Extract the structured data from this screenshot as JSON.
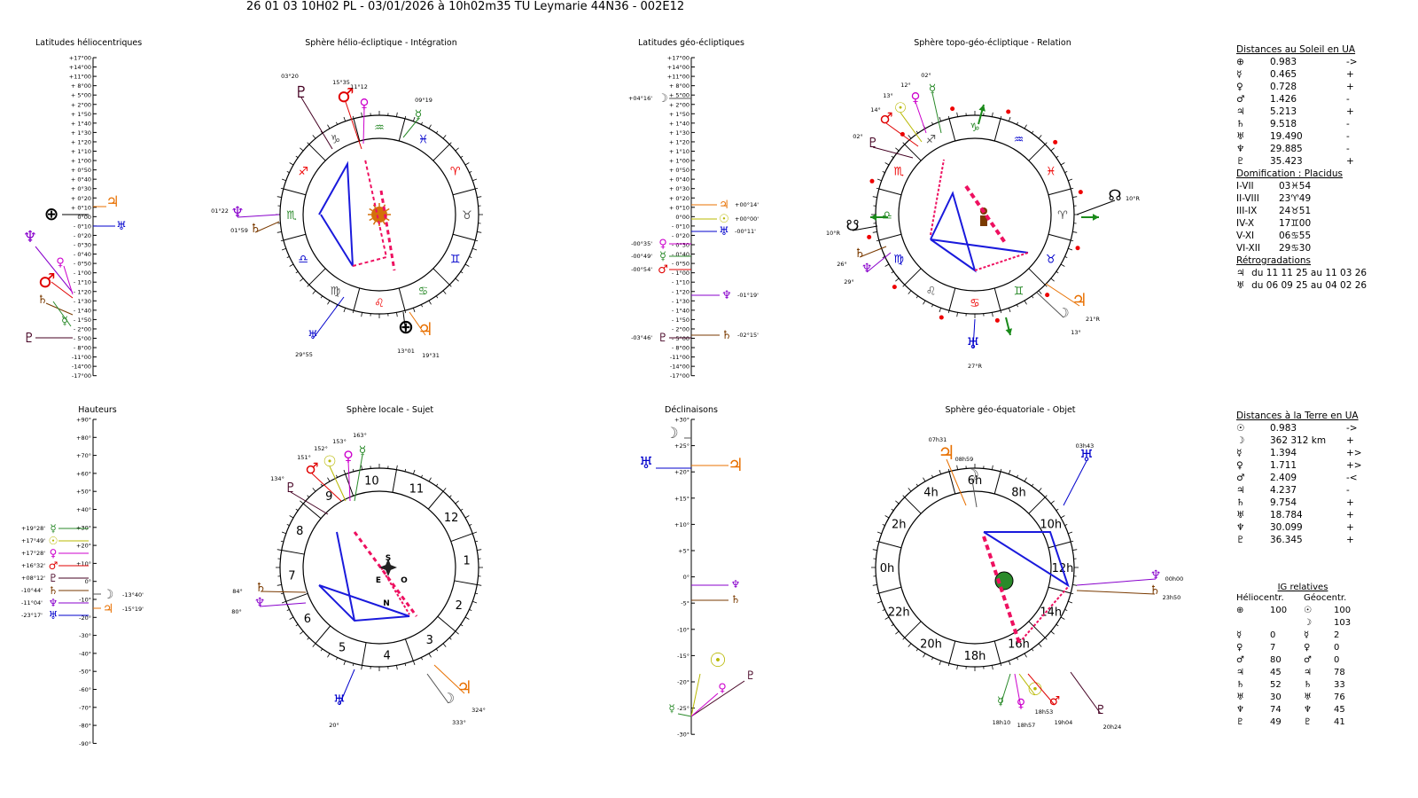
{
  "title": "26 01 03 10H02 PL   -  03/01/2026 à 10h02m35 TU  Leymarie  44N36 - 002E12",
  "panels": {
    "p1": "Latitudes héliocentriques",
    "p2": "Sphère hélio-écliptique - Intégration",
    "p3": "Latitudes géo-écliptiques",
    "p4": "Sphère topo-géo-écliptique - Relation",
    "p5": "Hauteurs",
    "p6": "Sphère locale - Sujet",
    "p7": "Déclinaisons",
    "p8": "Sphère géo-équatoriale - Objet"
  },
  "lat_scale": [
    "+17°00",
    "+14°00",
    "+11°00",
    "+ 8°00",
    "+ 5°00",
    "+ 2°00",
    "+ 1°50",
    "+ 1°40",
    "+ 1°30",
    "+ 1°20",
    "+ 1°10",
    "+ 1°00",
    "+ 0°50",
    "+ 0°40",
    "+ 0°30",
    "+ 0°20",
    "+ 0°10",
    "0°00",
    "- 0°10",
    "- 0°20",
    "- 0°30",
    "- 0°40",
    "- 0°50",
    "- 1°00",
    "- 1°10",
    "- 1°20",
    "- 1°30",
    "- 1°40",
    "- 1°50",
    "- 2°00",
    "- 5°00",
    "- 8°00",
    "-11°00",
    "-14°00",
    "-17°00"
  ],
  "alt_scale": [
    "+90°",
    "+80°",
    "+70°",
    "+60°",
    "+50°",
    "+40°",
    "+30°",
    "+20°",
    "+10°",
    "0°",
    "-10°",
    "-20°",
    "-30°",
    "-40°",
    "-50°",
    "-60°",
    "-70°",
    "-80°",
    "-90°"
  ],
  "dec_scale": [
    "+30°",
    "+25°",
    "+20°",
    "+15°",
    "+10°",
    "+5°",
    "0°",
    "-5°",
    "-10°",
    "-15°",
    "-20°",
    "-25°",
    "-30°"
  ],
  "geo_lat_labels": {
    "moon": "+04°16'",
    "jupiter": "+00°14'",
    "sun": "+00°00'",
    "uranus": "-00°11'",
    "venus": "-00°35'",
    "mercury": "-00°49'",
    "mars": "-00°54'",
    "neptune": "-01°19'",
    "pluto": "-03°46'",
    "saturn": "-02°15'"
  },
  "helio_labels": {
    "pluto": "03°20",
    "mars": "15°35",
    "venus": "11°12",
    "mercury": "09°19",
    "neptune": "01°22",
    "saturn": "01°59",
    "uranus": "29°55",
    "earth": "13°01",
    "jupiter": "19°31"
  },
  "topo_labels": {
    "mercury": "02°",
    "venus": "12°",
    "sun": "13°",
    "mars": "14°",
    "pluto": "02°",
    "node_r": "10°R",
    "node_l": "10°R",
    "saturn": "26°",
    "neptune": "29°",
    "moon": "13°",
    "jupiter": "21°R",
    "uranus": "27°R"
  },
  "local_labels": {
    "mars": "151°",
    "sun": "152°",
    "venus": "153°",
    "mercury": "163°",
    "pluto": "134°",
    "saturn": "84°",
    "neptune": "80°",
    "uranus": "20°",
    "moon": "333°",
    "jupiter": "324°",
    "S": "S",
    "E": "E",
    "O": "O",
    "N": "N"
  },
  "alt_labels": {
    "mercury": "+19°28'",
    "sun": "+17°49'",
    "venus": "+17°28'",
    "mars": "+16°32'",
    "pluto": "+08°12'",
    "saturn": "-10°44'",
    "neptune": "-11°04'",
    "uranus": "-23°17'",
    "moon": "-13°40'",
    "jupiter": "-15°19'"
  },
  "equat_labels": {
    "jupiter": "07h31",
    "moon": "08h59",
    "uranus": "03h43",
    "neptune": "00h00",
    "saturn": "23h50",
    "mercury": "18h10",
    "sun": "18h53",
    "venus": "18h57",
    "mars": "19h04",
    "pluto": "20h24"
  },
  "equat_hours": [
    "6h",
    "4h",
    "2h",
    "0h",
    "22h",
    "20h",
    "18h",
    "16h",
    "14h",
    "12h",
    "10h",
    "8h"
  ],
  "house_nums": [
    "10",
    "9",
    "8",
    "7",
    "6",
    "5",
    "4",
    "3",
    "2",
    "1",
    "12",
    "11"
  ],
  "sun_dist": {
    "header": "Distances au Soleil en UA",
    "rows": [
      {
        "g": "⊕",
        "v": "0.983",
        "s": "->"
      },
      {
        "g": "☿",
        "v": "0.465",
        "s": "+"
      },
      {
        "g": "♀",
        "v": "0.728",
        "s": "+"
      },
      {
        "g": "♂",
        "v": "1.426",
        "s": "-"
      },
      {
        "g": "♃",
        "v": "5.213",
        "s": "+"
      },
      {
        "g": "♄",
        "v": "9.518",
        "s": "-"
      },
      {
        "g": "♅",
        "v": "19.490",
        "s": "-"
      },
      {
        "g": "♆",
        "v": "29.885",
        "s": "-"
      },
      {
        "g": "♇",
        "v": "35.423",
        "s": "+"
      }
    ]
  },
  "domif": {
    "header": "Domification : Placidus",
    "rows": [
      {
        "k": "I-VII",
        "v": "03♓54"
      },
      {
        "k": "II-VIII",
        "v": "23♈49"
      },
      {
        "k": "III-IX",
        "v": "24♉51"
      },
      {
        "k": "IV-X",
        "v": "17♊00"
      },
      {
        "k": "V-XI",
        "v": "06♋55"
      },
      {
        "k": "VI-XII",
        "v": "29♋30"
      }
    ]
  },
  "retro": {
    "header": "Rétrogradations",
    "rows": [
      {
        "g": "♃",
        "v": "du 11 11 25 au 11 03 26"
      },
      {
        "g": "♅",
        "v": "du 06 09 25 au 04 02 26"
      }
    ]
  },
  "earth_dist": {
    "header": "Distances à la Terre en UA",
    "rows": [
      {
        "g": "☉",
        "v": "0.983",
        "s": "->"
      },
      {
        "g": "☽",
        "v": "362 312 km",
        "s": "+"
      },
      {
        "g": "☿",
        "v": "1.394",
        "s": "+>"
      },
      {
        "g": "♀",
        "v": "1.711",
        "s": "+>"
      },
      {
        "g": "♂",
        "v": "2.409",
        "s": "-<"
      },
      {
        "g": "♃",
        "v": "4.237",
        "s": "-"
      },
      {
        "g": "♄",
        "v": "9.754",
        "s": "+"
      },
      {
        "g": "♅",
        "v": "18.784",
        "s": "+"
      },
      {
        "g": "♆",
        "v": "30.099",
        "s": "+"
      },
      {
        "g": "♇",
        "v": "36.345",
        "s": "+"
      }
    ]
  },
  "ig": {
    "header": "IG relatives",
    "col1": "Héliocentr.",
    "col2": "Géocentr.",
    "rows": [
      {
        "hg": "⊕",
        "hv": "100",
        "gg": "☉",
        "gv": "100"
      },
      {
        "hg": "",
        "hv": "",
        "gg": "☽",
        "gv": "103"
      },
      {
        "hg": "☿",
        "hv": "0",
        "gg": "☿",
        "gv": "2"
      },
      {
        "hg": "♀",
        "hv": "7",
        "gg": "♀",
        "gv": "0"
      },
      {
        "hg": "♂",
        "hv": "80",
        "gg": "♂",
        "gv": "0"
      },
      {
        "hg": "♃",
        "hv": "45",
        "gg": "♃",
        "gv": "78"
      },
      {
        "hg": "♄",
        "hv": "52",
        "gg": "♄",
        "gv": "33"
      },
      {
        "hg": "♅",
        "hv": "30",
        "gg": "♅",
        "gv": "76"
      },
      {
        "hg": "♆",
        "hv": "74",
        "gg": "♆",
        "gv": "45"
      },
      {
        "hg": "♇",
        "hv": "49",
        "gg": "♇",
        "gv": "41"
      }
    ]
  },
  "zodiac_helio": [
    "♑",
    "♐",
    "♏",
    "♎",
    "♍",
    "♌",
    "♋",
    "♊",
    "♉",
    "♈",
    "♓",
    "♒"
  ],
  "zodiac_topo": [
    "♐",
    "♏",
    "♎",
    "♍",
    "♌",
    "♋",
    "♊",
    "♉",
    "♈",
    "♓",
    "♒",
    "♑"
  ],
  "colors": {
    "sun": "#b8b800",
    "moon": "#555555",
    "mercury": "#2a8a2a",
    "venus": "#cc00cc",
    "mars": "#e00000",
    "jupiter": "#e87000",
    "saturn": "#7a3a00",
    "uranus": "#0000cc",
    "neptune": "#8800cc",
    "pluto": "#440022",
    "aspect_blue": "#1a1adc",
    "aspect_red": "#ee1060"
  }
}
